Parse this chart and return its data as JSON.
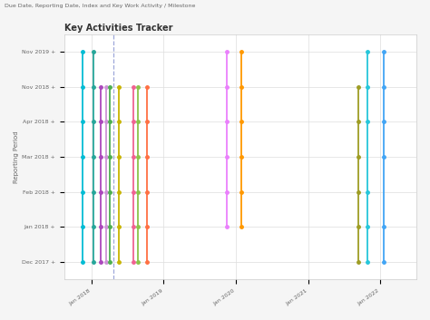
{
  "title": "Key Activities Tracker",
  "subtitle": "Due Date, Reporting Date, Index and Key Work Activity / Milestone",
  "ylabel": "Reporting Period",
  "background_color": "#f5f5f5",
  "plot_bg_color": "#ffffff",
  "grid_color": "#dddddd",
  "y_tick_labels": [
    "Dec 2017 +",
    "Jan 2018 +",
    "Feb 2018 +",
    "Mar 2018 +",
    "Apr 2018 +",
    "Nov 2018 +",
    "Nov 2019 +"
  ],
  "x_tick_labels": [
    "Jan 2018",
    "Jan 2019",
    "Jan 2020",
    "Jan 2021",
    "Jan 2022"
  ],
  "x_tick_positions": [
    0,
    4,
    8,
    12,
    16
  ],
  "series": [
    {
      "color": "#00bcd4",
      "x_base": -0.5,
      "y": [
        0,
        1,
        2,
        3,
        4,
        5,
        6
      ]
    },
    {
      "color": "#26a69a",
      "x_base": 0.1,
      "y": [
        0,
        1,
        2,
        3,
        4,
        5,
        6
      ]
    },
    {
      "color": "#ab47bc",
      "x_base": 0.5,
      "y": [
        0,
        1,
        2,
        3,
        4,
        5
      ]
    },
    {
      "color": "#ce93d8",
      "x_base": 0.8,
      "y": [
        0,
        1,
        2,
        3,
        4,
        5
      ]
    },
    {
      "color": "#4caf50",
      "x_base": 1.0,
      "y": [
        0,
        1,
        2,
        3,
        4,
        5
      ]
    },
    {
      "color": "#c8b400",
      "x_base": 1.5,
      "y": [
        0,
        1,
        2,
        3,
        4,
        5
      ]
    },
    {
      "color": "#f06292",
      "x_base": 2.3,
      "y": [
        0,
        1,
        2,
        3,
        4,
        5
      ]
    },
    {
      "color": "#8bc34a",
      "x_base": 2.6,
      "y": [
        0,
        1,
        2,
        3,
        4,
        5
      ]
    },
    {
      "color": "#ff7043",
      "x_base": 3.1,
      "y": [
        0,
        1,
        2,
        3,
        4,
        5
      ]
    },
    {
      "color": "#ea80fc",
      "x_base": 7.5,
      "y": [
        1,
        2,
        3,
        4,
        5,
        6
      ]
    },
    {
      "color": "#ff9800",
      "x_base": 8.3,
      "y": [
        1,
        2,
        3,
        4,
        5,
        6
      ]
    },
    {
      "color": "#9e9d24",
      "x_base": 14.8,
      "y": [
        0,
        1,
        2,
        3,
        4,
        5
      ]
    },
    {
      "color": "#26c6da",
      "x_base": 15.3,
      "y": [
        0,
        1,
        2,
        4,
        5,
        6
      ]
    },
    {
      "color": "#42a5f5",
      "x_base": 16.2,
      "y": [
        0,
        1,
        3,
        4,
        5,
        6
      ]
    }
  ],
  "dashed_x": 1.2,
  "dashed_color": "#9fa8da",
  "xlim": [
    -1.5,
    18
  ],
  "ylim": [
    -0.5,
    6.5
  ]
}
